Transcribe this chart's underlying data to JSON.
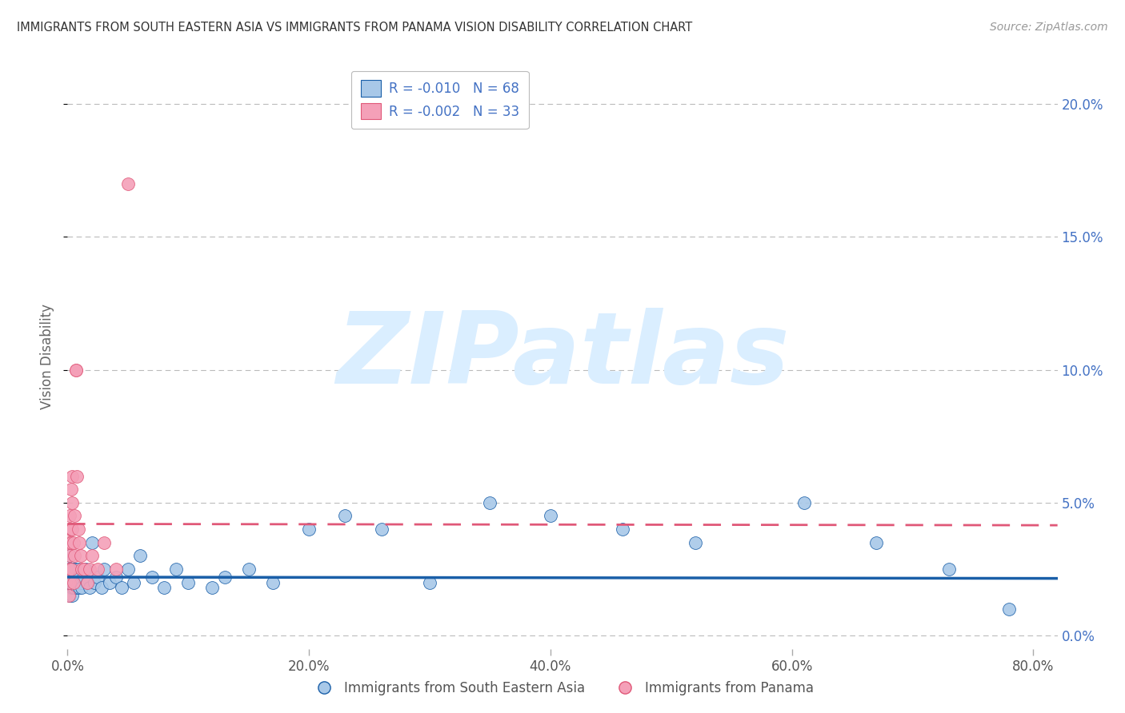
{
  "title": "IMMIGRANTS FROM SOUTH EASTERN ASIA VS IMMIGRANTS FROM PANAMA VISION DISABILITY CORRELATION CHART",
  "source": "Source: ZipAtlas.com",
  "ylabel": "Vision Disability",
  "series1_label": "Immigrants from South Eastern Asia",
  "series2_label": "Immigrants from Panama",
  "series1_R": -0.01,
  "series1_N": 68,
  "series2_R": -0.002,
  "series2_N": 33,
  "series1_color": "#a8c8e8",
  "series2_color": "#f4a0b8",
  "trend1_color": "#1a5fa8",
  "trend2_color": "#e05878",
  "watermark": "ZIPatlas",
  "watermark_color": "#daeeff",
  "xlim": [
    0,
    0.82
  ],
  "ylim": [
    -0.005,
    0.215
  ],
  "yticks": [
    0.0,
    0.05,
    0.1,
    0.15,
    0.2
  ],
  "xticks": [
    0.0,
    0.2,
    0.4,
    0.6,
    0.8
  ],
  "series1_x": [
    0.001,
    0.001,
    0.001,
    0.001,
    0.002,
    0.002,
    0.002,
    0.002,
    0.002,
    0.003,
    0.003,
    0.003,
    0.003,
    0.004,
    0.004,
    0.004,
    0.004,
    0.005,
    0.005,
    0.005,
    0.006,
    0.006,
    0.006,
    0.007,
    0.007,
    0.008,
    0.008,
    0.009,
    0.009,
    0.01,
    0.01,
    0.011,
    0.012,
    0.013,
    0.015,
    0.016,
    0.018,
    0.02,
    0.022,
    0.025,
    0.028,
    0.03,
    0.035,
    0.04,
    0.045,
    0.05,
    0.055,
    0.06,
    0.07,
    0.08,
    0.09,
    0.1,
    0.12,
    0.13,
    0.15,
    0.17,
    0.2,
    0.23,
    0.26,
    0.3,
    0.35,
    0.4,
    0.46,
    0.52,
    0.61,
    0.67,
    0.73,
    0.78
  ],
  "series1_y": [
    0.022,
    0.018,
    0.025,
    0.02,
    0.015,
    0.02,
    0.025,
    0.03,
    0.018,
    0.022,
    0.018,
    0.025,
    0.02,
    0.015,
    0.02,
    0.025,
    0.018,
    0.022,
    0.018,
    0.025,
    0.02,
    0.022,
    0.018,
    0.025,
    0.02,
    0.018,
    0.022,
    0.02,
    0.025,
    0.018,
    0.022,
    0.02,
    0.018,
    0.022,
    0.025,
    0.02,
    0.018,
    0.035,
    0.02,
    0.022,
    0.018,
    0.025,
    0.02,
    0.022,
    0.018,
    0.025,
    0.02,
    0.03,
    0.022,
    0.018,
    0.025,
    0.02,
    0.018,
    0.022,
    0.025,
    0.02,
    0.04,
    0.045,
    0.04,
    0.02,
    0.05,
    0.045,
    0.04,
    0.035,
    0.05,
    0.035,
    0.025,
    0.01
  ],
  "series2_x": [
    0.001,
    0.001,
    0.001,
    0.002,
    0.002,
    0.002,
    0.002,
    0.003,
    0.003,
    0.003,
    0.003,
    0.004,
    0.004,
    0.004,
    0.005,
    0.005,
    0.006,
    0.006,
    0.007,
    0.007,
    0.008,
    0.009,
    0.01,
    0.011,
    0.012,
    0.014,
    0.016,
    0.018,
    0.02,
    0.025,
    0.03,
    0.04,
    0.05
  ],
  "series2_y": [
    0.025,
    0.035,
    0.015,
    0.04,
    0.03,
    0.045,
    0.02,
    0.04,
    0.035,
    0.055,
    0.025,
    0.06,
    0.04,
    0.05,
    0.035,
    0.02,
    0.045,
    0.03,
    0.1,
    0.1,
    0.06,
    0.04,
    0.035,
    0.03,
    0.025,
    0.025,
    0.02,
    0.025,
    0.03,
    0.025,
    0.035,
    0.025,
    0.17
  ],
  "trend1_y_start": 0.022,
  "trend1_y_end": 0.0215,
  "trend2_y_start": 0.042,
  "trend2_y_end": 0.0415,
  "background_color": "#ffffff",
  "grid_color": "#bbbbbb",
  "title_color": "#333333",
  "axis_label_color": "#666666",
  "tick_label_color_right": "#4472c4",
  "tick_label_color_x": "#555555",
  "legend_edge_color": "#bbbbbb"
}
